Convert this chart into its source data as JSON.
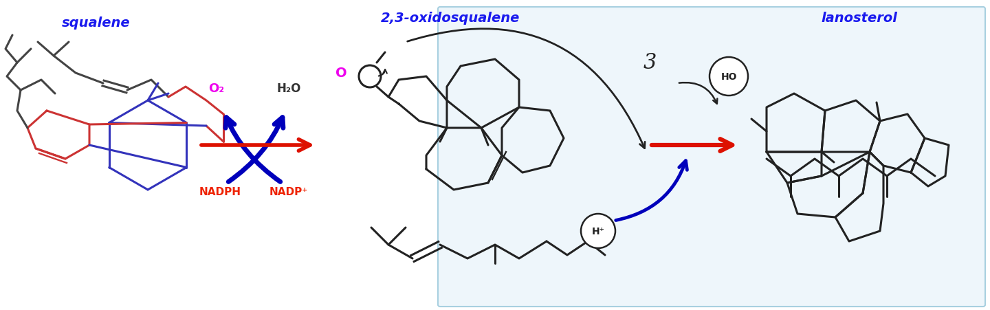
{
  "background_color": "#ffffff",
  "border_color": "#a8d0e0",
  "label_squalene": "squalene",
  "label_oxidosqualene": "2,3-oxidosqualene",
  "label_lanosterol": "lanosterol",
  "label_NADPH": "NADPH",
  "label_NADP": "NADP⁺",
  "label_O2": "O₂",
  "label_H2O": "H₂O",
  "label_H": "H⁺",
  "label_HO": "HO",
  "label_color_blue": "#1a1aee",
  "label_color_red": "#ee2200",
  "label_color_magenta": "#ee00ee",
  "arrow_red_color": "#dd1100",
  "arrow_blue_color": "#0000bb",
  "squalene_red_color": "#cc3333",
  "squalene_blue_color": "#3333bb",
  "squalene_dark_color": "#444444",
  "line_color": "#222222",
  "figsize": [
    14.4,
    4.52
  ],
  "dpi": 100
}
